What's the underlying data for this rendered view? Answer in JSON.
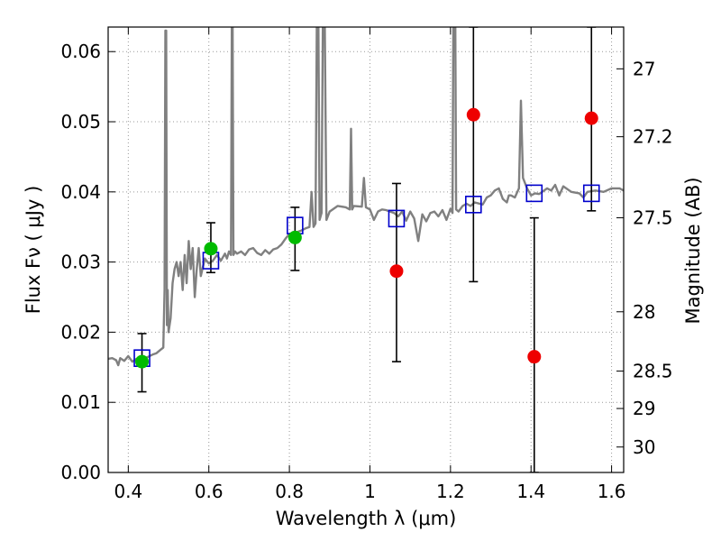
{
  "chart_data": {
    "type": "scatter",
    "xlabel": "Wavelength  λ (μm)",
    "ylabel": "Flux  Fν ( μJy )",
    "ylabel_right": "Magnitude (AB)",
    "xlim": [
      0.35,
      1.63
    ],
    "ylim": [
      0.0,
      0.0635
    ],
    "xticks": [
      {
        "value": 0.4,
        "label": "0.4"
      },
      {
        "value": 0.6,
        "label": "0.6"
      },
      {
        "value": 0.8,
        "label": "0.8"
      },
      {
        "value": 1.0,
        "label": "1"
      },
      {
        "value": 1.2,
        "label": "1.2"
      },
      {
        "value": 1.4,
        "label": "1.4"
      },
      {
        "value": 1.6,
        "label": "1.6"
      }
    ],
    "yticks": [
      {
        "value": 0.0,
        "label": "0.00"
      },
      {
        "value": 0.01,
        "label": "0.01"
      },
      {
        "value": 0.02,
        "label": "0.02"
      },
      {
        "value": 0.03,
        "label": "0.03"
      },
      {
        "value": 0.04,
        "label": "0.04"
      },
      {
        "value": 0.05,
        "label": "0.05"
      },
      {
        "value": 0.06,
        "label": "0.06"
      }
    ],
    "magticks": [
      {
        "value": 27.0,
        "label": "27"
      },
      {
        "value": 27.2,
        "label": "27.2"
      },
      {
        "value": 27.5,
        "label": "27.5"
      },
      {
        "value": 28.0,
        "label": "28"
      },
      {
        "value": 28.5,
        "label": "28.5"
      },
      {
        "value": 29.0,
        "label": "29"
      },
      {
        "value": 30.0,
        "label": "30"
      }
    ],
    "grid": true,
    "colors": {
      "spectrum": "#808080",
      "model": "#0000cc",
      "detection": "#00bb00",
      "upper": "#ee0000",
      "errorbar": "#000000"
    },
    "spectrum": [
      [
        0.35,
        0.0162
      ],
      [
        0.36,
        0.0163
      ],
      [
        0.37,
        0.016
      ],
      [
        0.375,
        0.0153
      ],
      [
        0.38,
        0.0163
      ],
      [
        0.39,
        0.0159
      ],
      [
        0.4,
        0.0166
      ],
      [
        0.41,
        0.0158
      ],
      [
        0.42,
        0.0162
      ],
      [
        0.43,
        0.0161
      ],
      [
        0.44,
        0.0163
      ],
      [
        0.45,
        0.0165
      ],
      [
        0.46,
        0.0168
      ],
      [
        0.47,
        0.017
      ],
      [
        0.48,
        0.0175
      ],
      [
        0.487,
        0.0178
      ],
      [
        0.49,
        0.026
      ],
      [
        0.492,
        0.063
      ],
      [
        0.494,
        0.063
      ],
      [
        0.496,
        0.021
      ],
      [
        0.498,
        0.026
      ],
      [
        0.5,
        0.02
      ],
      [
        0.505,
        0.022
      ],
      [
        0.51,
        0.027
      ],
      [
        0.515,
        0.029
      ],
      [
        0.52,
        0.03
      ],
      [
        0.525,
        0.028
      ],
      [
        0.53,
        0.03
      ],
      [
        0.535,
        0.026
      ],
      [
        0.54,
        0.031
      ],
      [
        0.545,
        0.027
      ],
      [
        0.55,
        0.033
      ],
      [
        0.555,
        0.029
      ],
      [
        0.56,
        0.032
      ],
      [
        0.565,
        0.025
      ],
      [
        0.57,
        0.029
      ],
      [
        0.575,
        0.032
      ],
      [
        0.58,
        0.028
      ],
      [
        0.59,
        0.0305
      ],
      [
        0.6,
        0.0298
      ],
      [
        0.61,
        0.0302
      ],
      [
        0.62,
        0.031
      ],
      [
        0.63,
        0.0302
      ],
      [
        0.64,
        0.0312
      ],
      [
        0.645,
        0.0305
      ],
      [
        0.65,
        0.0315
      ],
      [
        0.655,
        0.031
      ],
      [
        0.657,
        0.0635
      ],
      [
        0.659,
        0.0635
      ],
      [
        0.661,
        0.031
      ],
      [
        0.665,
        0.0315
      ],
      [
        0.67,
        0.0312
      ],
      [
        0.68,
        0.0315
      ],
      [
        0.69,
        0.031
      ],
      [
        0.7,
        0.0318
      ],
      [
        0.71,
        0.032
      ],
      [
        0.72,
        0.0313
      ],
      [
        0.73,
        0.031
      ],
      [
        0.74,
        0.0317
      ],
      [
        0.75,
        0.0312
      ],
      [
        0.76,
        0.0318
      ],
      [
        0.77,
        0.032
      ],
      [
        0.78,
        0.0325
      ],
      [
        0.79,
        0.0333
      ],
      [
        0.8,
        0.034
      ],
      [
        0.81,
        0.0342
      ],
      [
        0.82,
        0.0343
      ],
      [
        0.83,
        0.0345
      ],
      [
        0.84,
        0.0348
      ],
      [
        0.85,
        0.035
      ],
      [
        0.855,
        0.04
      ],
      [
        0.86,
        0.035
      ],
      [
        0.865,
        0.0355
      ],
      [
        0.868,
        0.0635
      ],
      [
        0.872,
        0.0635
      ],
      [
        0.875,
        0.036
      ],
      [
        0.88,
        0.037
      ],
      [
        0.883,
        0.0635
      ],
      [
        0.888,
        0.0635
      ],
      [
        0.892,
        0.036
      ],
      [
        0.9,
        0.0372
      ],
      [
        0.92,
        0.038
      ],
      [
        0.94,
        0.0378
      ],
      [
        0.95,
        0.0375
      ],
      [
        0.953,
        0.049
      ],
      [
        0.956,
        0.0375
      ],
      [
        0.96,
        0.038
      ],
      [
        0.98,
        0.0379
      ],
      [
        0.985,
        0.042
      ],
      [
        0.99,
        0.0378
      ],
      [
        1.0,
        0.0375
      ],
      [
        1.01,
        0.036
      ],
      [
        1.02,
        0.0372
      ],
      [
        1.03,
        0.0375
      ],
      [
        1.04,
        0.0374
      ],
      [
        1.05,
        0.0372
      ],
      [
        1.06,
        0.037
      ],
      [
        1.07,
        0.0365
      ],
      [
        1.08,
        0.0372
      ],
      [
        1.09,
        0.0359
      ],
      [
        1.1,
        0.0372
      ],
      [
        1.11,
        0.0362
      ],
      [
        1.12,
        0.033
      ],
      [
        1.13,
        0.0368
      ],
      [
        1.14,
        0.0358
      ],
      [
        1.15,
        0.037
      ],
      [
        1.16,
        0.0372
      ],
      [
        1.17,
        0.0365
      ],
      [
        1.18,
        0.0374
      ],
      [
        1.19,
        0.036
      ],
      [
        1.2,
        0.0376
      ],
      [
        1.205,
        0.037
      ],
      [
        1.207,
        0.0635
      ],
      [
        1.212,
        0.0635
      ],
      [
        1.214,
        0.0375
      ],
      [
        1.22,
        0.0372
      ],
      [
        1.23,
        0.038
      ],
      [
        1.24,
        0.0383
      ],
      [
        1.25,
        0.038
      ],
      [
        1.26,
        0.0385
      ],
      [
        1.28,
        0.0382
      ],
      [
        1.29,
        0.0392
      ],
      [
        1.3,
        0.0395
      ],
      [
        1.31,
        0.0402
      ],
      [
        1.32,
        0.0405
      ],
      [
        1.33,
        0.039
      ],
      [
        1.34,
        0.0385
      ],
      [
        1.345,
        0.0395
      ],
      [
        1.35,
        0.0395
      ],
      [
        1.36,
        0.0392
      ],
      [
        1.37,
        0.0405
      ],
      [
        1.375,
        0.053
      ],
      [
        1.38,
        0.042
      ],
      [
        1.39,
        0.0405
      ],
      [
        1.4,
        0.0395
      ],
      [
        1.41,
        0.0398
      ],
      [
        1.42,
        0.0397
      ],
      [
        1.44,
        0.0405
      ],
      [
        1.45,
        0.0402
      ],
      [
        1.46,
        0.041
      ],
      [
        1.47,
        0.0395
      ],
      [
        1.48,
        0.0408
      ],
      [
        1.5,
        0.04
      ],
      [
        1.52,
        0.0398
      ],
      [
        1.53,
        0.0392
      ],
      [
        1.54,
        0.04
      ],
      [
        1.56,
        0.0402
      ],
      [
        1.58,
        0.04
      ],
      [
        1.6,
        0.0405
      ],
      [
        1.62,
        0.0405
      ],
      [
        1.63,
        0.0402
      ]
    ],
    "model_points": [
      {
        "x": 0.434,
        "y": 0.0163
      },
      {
        "x": 0.605,
        "y": 0.0302
      },
      {
        "x": 0.814,
        "y": 0.0352
      },
      {
        "x": 1.066,
        "y": 0.0362
      },
      {
        "x": 1.257,
        "y": 0.0382
      },
      {
        "x": 1.408,
        "y": 0.0398
      },
      {
        "x": 1.55,
        "y": 0.0398
      }
    ],
    "detections": [
      {
        "x": 0.434,
        "y": 0.0158,
        "err_low": 0.0115,
        "err_high": 0.0198
      },
      {
        "x": 0.605,
        "y": 0.0319,
        "err_low": 0.0285,
        "err_high": 0.0356
      },
      {
        "x": 0.814,
        "y": 0.0335,
        "err_low": 0.0288,
        "err_high": 0.0378
      }
    ],
    "nondetections": [
      {
        "x": 1.066,
        "y": 0.0287,
        "err_low": 0.0158,
        "err_high": 0.0412
      },
      {
        "x": 1.257,
        "y": 0.051,
        "err_low": 0.0272,
        "err_high": 0.0635
      },
      {
        "x": 1.408,
        "y": 0.0165,
        "err_low": 0.0,
        "err_high": 0.0363
      },
      {
        "x": 1.55,
        "y": 0.0505,
        "err_low": 0.0373,
        "err_high": 0.0635
      }
    ]
  }
}
